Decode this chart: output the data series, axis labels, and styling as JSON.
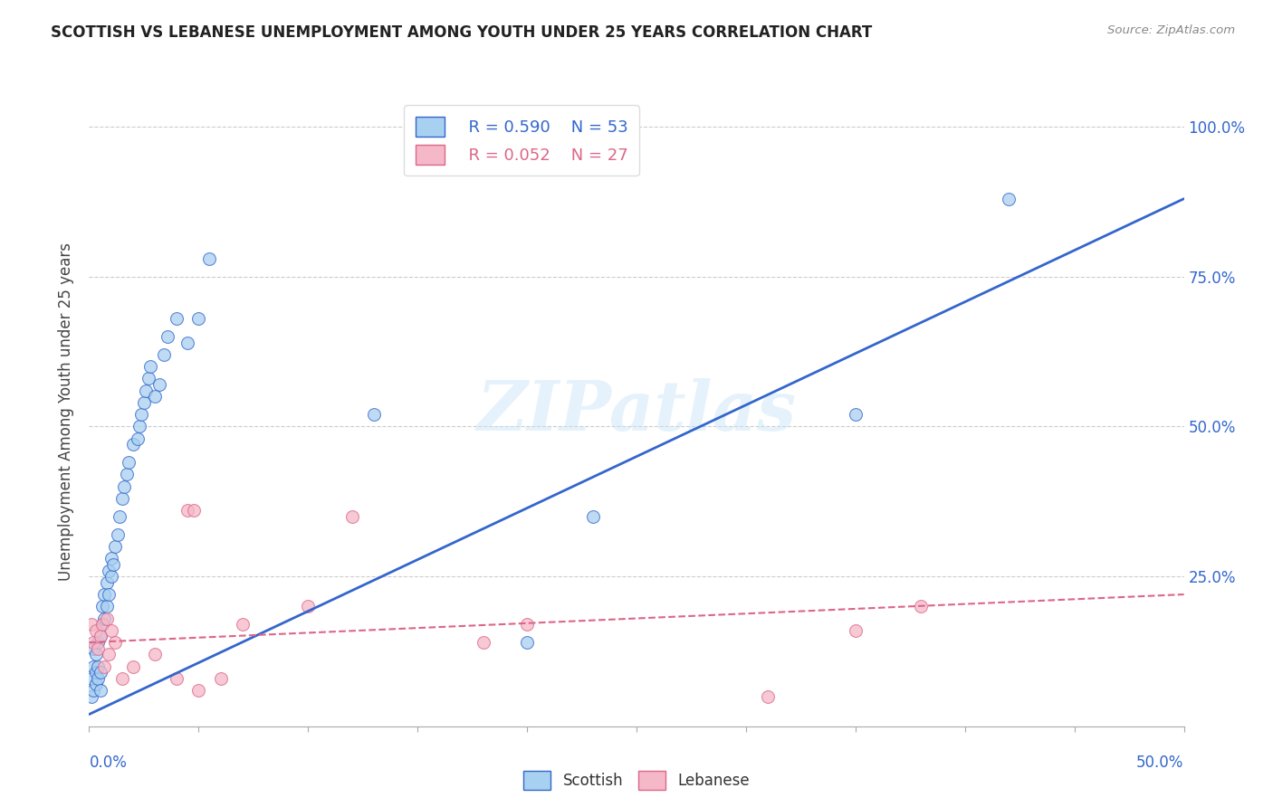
{
  "title": "SCOTTISH VS LEBANESE UNEMPLOYMENT AMONG YOUTH UNDER 25 YEARS CORRELATION CHART",
  "source": "Source: ZipAtlas.com",
  "ylabel": "Unemployment Among Youth under 25 years",
  "yticks": [
    0.0,
    0.25,
    0.5,
    0.75,
    1.0
  ],
  "ytick_labels": [
    "",
    "25.0%",
    "50.0%",
    "75.0%",
    "100.0%"
  ],
  "xlim": [
    0.0,
    0.5
  ],
  "ylim": [
    0.0,
    1.05
  ],
  "legend_scottish_R": "R = 0.590",
  "legend_scottish_N": "N = 53",
  "legend_lebanese_R": "R = 0.052",
  "legend_lebanese_N": "N = 27",
  "scottish_color": "#a8d0f0",
  "lebanese_color": "#f5b8c8",
  "trendline_scottish_color": "#3366cc",
  "trendline_lebanese_color": "#dd6688",
  "background_color": "#ffffff",
  "watermark": "ZIPatlas",
  "scottish_x": [
    0.001,
    0.001,
    0.002,
    0.002,
    0.002,
    0.003,
    0.003,
    0.003,
    0.004,
    0.004,
    0.004,
    0.005,
    0.005,
    0.005,
    0.006,
    0.006,
    0.007,
    0.007,
    0.008,
    0.008,
    0.009,
    0.009,
    0.01,
    0.01,
    0.011,
    0.012,
    0.013,
    0.014,
    0.015,
    0.016,
    0.017,
    0.018,
    0.02,
    0.022,
    0.023,
    0.024,
    0.025,
    0.026,
    0.027,
    0.028,
    0.03,
    0.032,
    0.034,
    0.036,
    0.04,
    0.045,
    0.05,
    0.055,
    0.13,
    0.2,
    0.23,
    0.35,
    0.42
  ],
  "scottish_y": [
    0.05,
    0.08,
    0.06,
    0.1,
    0.13,
    0.07,
    0.09,
    0.12,
    0.08,
    0.1,
    0.14,
    0.06,
    0.09,
    0.15,
    0.17,
    0.2,
    0.18,
    0.22,
    0.2,
    0.24,
    0.22,
    0.26,
    0.25,
    0.28,
    0.27,
    0.3,
    0.32,
    0.35,
    0.38,
    0.4,
    0.42,
    0.44,
    0.47,
    0.48,
    0.5,
    0.52,
    0.54,
    0.56,
    0.58,
    0.6,
    0.55,
    0.57,
    0.62,
    0.65,
    0.68,
    0.64,
    0.68,
    0.78,
    0.52,
    0.14,
    0.35,
    0.52,
    0.88
  ],
  "lebanese_x": [
    0.001,
    0.002,
    0.003,
    0.004,
    0.005,
    0.006,
    0.007,
    0.008,
    0.009,
    0.01,
    0.012,
    0.015,
    0.02,
    0.03,
    0.04,
    0.045,
    0.048,
    0.05,
    0.06,
    0.07,
    0.1,
    0.12,
    0.18,
    0.2,
    0.31,
    0.35,
    0.38
  ],
  "lebanese_y": [
    0.17,
    0.14,
    0.16,
    0.13,
    0.15,
    0.17,
    0.1,
    0.18,
    0.12,
    0.16,
    0.14,
    0.08,
    0.1,
    0.12,
    0.08,
    0.36,
    0.36,
    0.06,
    0.08,
    0.17,
    0.2,
    0.35,
    0.14,
    0.17,
    0.05,
    0.16,
    0.2
  ],
  "scottish_trendline_x": [
    0.0,
    0.5
  ],
  "scottish_trendline_y": [
    0.02,
    0.88
  ],
  "lebanese_trendline_x": [
    0.0,
    0.5
  ],
  "lebanese_trendline_y": [
    0.14,
    0.22
  ]
}
